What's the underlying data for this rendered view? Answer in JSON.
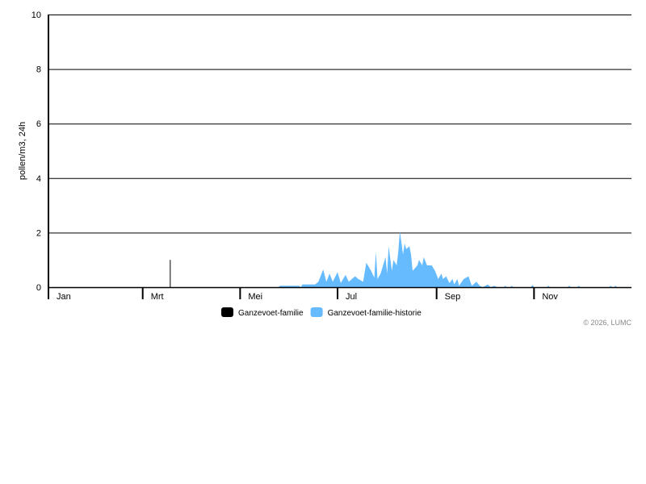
{
  "chart_data": {
    "type": "area",
    "ylabel": "pollen/m3, 24h",
    "ylim": [
      0,
      10
    ],
    "yticks": [
      0,
      2,
      4,
      6,
      8,
      10
    ],
    "xlim_day_of_year": [
      0,
      365
    ],
    "xticks": [
      {
        "label": "Jan",
        "day": 0
      },
      {
        "label": "Mrt",
        "day": 59
      },
      {
        "label": "Mei",
        "day": 120
      },
      {
        "label": "Jul",
        "day": 181
      },
      {
        "label": "Sep",
        "day": 243
      },
      {
        "label": "Nov",
        "day": 304
      }
    ],
    "grid": true,
    "legend_placement": "bottom",
    "series": [
      {
        "name": "Ganzevoet-familie",
        "color": "#000000",
        "kind": "bar",
        "points": [
          [
            76,
            1.0
          ]
        ]
      },
      {
        "name": "Ganzevoet-familie-historie",
        "color": "#66bbff",
        "kind": "area",
        "points": [
          [
            144,
            0
          ],
          [
            145,
            0.05
          ],
          [
            157,
            0.05
          ],
          [
            158,
            0
          ],
          [
            159,
            0.1
          ],
          [
            167,
            0.1
          ],
          [
            169,
            0.2
          ],
          [
            172,
            0.65
          ],
          [
            174,
            0.2
          ],
          [
            176,
            0.5
          ],
          [
            178,
            0.2
          ],
          [
            181,
            0.55
          ],
          [
            183,
            0.15
          ],
          [
            186,
            0.45
          ],
          [
            188,
            0.2
          ],
          [
            192,
            0.4
          ],
          [
            194,
            0.3
          ],
          [
            197,
            0.2
          ],
          [
            199,
            0.9
          ],
          [
            202,
            0.6
          ],
          [
            204,
            0.35
          ],
          [
            205,
            1.3
          ],
          [
            206,
            0.3
          ],
          [
            208,
            0.5
          ],
          [
            211,
            1.1
          ],
          [
            212,
            0.5
          ],
          [
            213,
            1.5
          ],
          [
            215,
            0.6
          ],
          [
            216,
            1.0
          ],
          [
            218,
            0.8
          ],
          [
            219,
            1.3
          ],
          [
            220,
            2.05
          ],
          [
            222,
            1.2
          ],
          [
            223,
            1.6
          ],
          [
            224,
            1.4
          ],
          [
            226,
            1.5
          ],
          [
            227,
            1.2
          ],
          [
            228,
            0.6
          ],
          [
            231,
            0.8
          ],
          [
            232,
            1.0
          ],
          [
            234,
            0.8
          ],
          [
            235,
            1.1
          ],
          [
            237,
            0.8
          ],
          [
            240,
            0.8
          ],
          [
            242,
            0.6
          ],
          [
            244,
            0.3
          ],
          [
            246,
            0.5
          ],
          [
            247,
            0.3
          ],
          [
            249,
            0.4
          ],
          [
            251,
            0.15
          ],
          [
            253,
            0.3
          ],
          [
            254,
            0.1
          ],
          [
            256,
            0.3
          ],
          [
            257,
            0.05
          ],
          [
            260,
            0.3
          ],
          [
            263,
            0.4
          ],
          [
            265,
            0.05
          ],
          [
            268,
            0.2
          ],
          [
            270,
            0.05
          ],
          [
            272,
            0
          ],
          [
            275,
            0.1
          ],
          [
            277,
            0
          ],
          [
            279,
            0.05
          ],
          [
            281,
            0
          ],
          [
            285,
            0
          ],
          [
            286,
            0.05
          ],
          [
            287,
            0
          ],
          [
            289,
            0
          ],
          [
            290,
            0.05
          ],
          [
            291,
            0
          ],
          [
            302,
            0
          ],
          [
            303,
            0.08
          ],
          [
            304,
            0
          ],
          [
            312,
            0
          ],
          [
            313,
            0.05
          ],
          [
            314,
            0
          ],
          [
            325,
            0
          ],
          [
            326,
            0.05
          ],
          [
            327,
            0
          ],
          [
            331,
            0
          ],
          [
            332,
            0.05
          ],
          [
            333,
            0
          ],
          [
            351,
            0
          ],
          [
            352,
            0.05
          ],
          [
            353,
            0
          ],
          [
            354,
            0
          ],
          [
            355,
            0.05
          ],
          [
            356,
            0
          ]
        ]
      }
    ]
  },
  "copyright": "© 2026, LUMC"
}
